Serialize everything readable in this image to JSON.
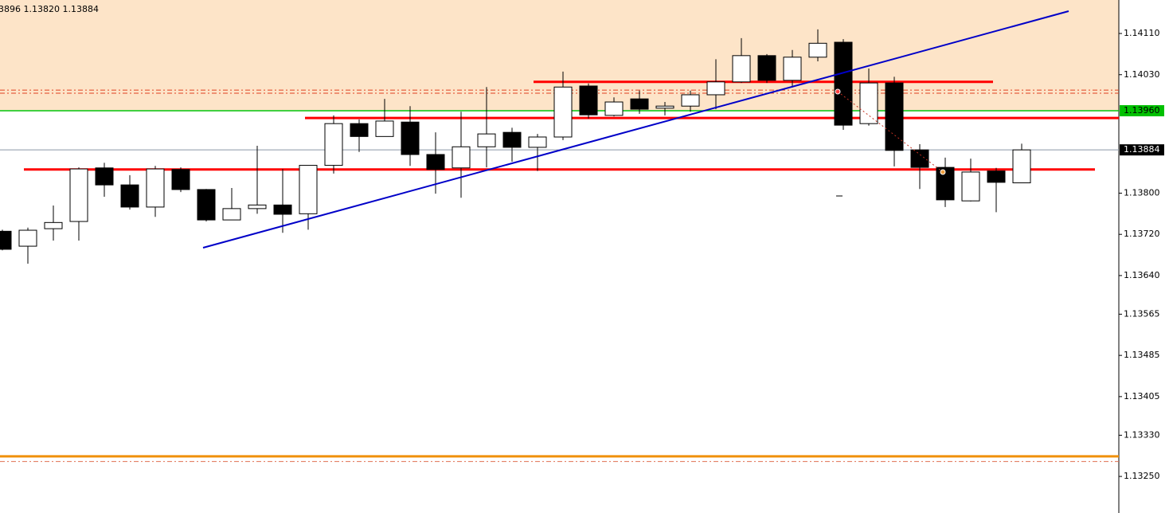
{
  "chart_data": {
    "type": "candlestick",
    "header": "3896 1.13820 1.13884",
    "open": [
      1.13726,
      1.13697,
      1.13731,
      1.13745,
      1.13849,
      1.13816,
      1.13773,
      1.13846,
      1.13807,
      1.13748,
      1.1377,
      1.13777,
      1.1376,
      1.13854,
      1.13935,
      1.1391,
      1.13938,
      1.13875,
      1.13849,
      1.1389,
      1.13918,
      1.13889,
      1.13909,
      1.14008,
      1.13951,
      1.13983,
      1.13965,
      1.13969,
      1.13991,
      1.14016,
      1.14067,
      1.14019,
      1.14064,
      1.14093,
      1.13935,
      1.14014,
      1.13884,
      1.1385,
      1.13785,
      1.13843,
      1.1382
    ],
    "high": [
      1.13729,
      1.13733,
      1.13776,
      1.1385,
      1.13859,
      1.13835,
      1.13853,
      1.1385,
      1.13808,
      1.1381,
      1.13892,
      1.13847,
      1.13854,
      1.13951,
      1.13943,
      1.13983,
      1.13969,
      1.13918,
      1.13958,
      1.14006,
      1.13927,
      1.13915,
      1.14036,
      1.14013,
      1.13986,
      1.13999,
      1.13977,
      1.13999,
      1.1406,
      1.14101,
      1.1407,
      1.14078,
      1.14118,
      1.14099,
      1.14042,
      1.14026,
      1.13895,
      1.13869,
      1.13867,
      1.13849,
      1.13896
    ],
    "low": [
      1.13689,
      1.13663,
      1.13708,
      1.13708,
      1.13793,
      1.13768,
      1.13754,
      1.13802,
      1.13745,
      1.13748,
      1.1376,
      1.13723,
      1.13729,
      1.13838,
      1.1388,
      1.1391,
      1.13853,
      1.13799,
      1.13791,
      1.1385,
      1.13861,
      1.13843,
      1.13903,
      1.13945,
      1.13949,
      1.13954,
      1.13951,
      1.13958,
      1.13963,
      1.14014,
      1.14014,
      1.14005,
      1.14056,
      1.13923,
      1.13931,
      1.13852,
      1.13808,
      1.13773,
      1.13784,
      1.13763,
      1.1382
    ],
    "close": [
      1.13691,
      1.13728,
      1.13743,
      1.13847,
      1.13816,
      1.13773,
      1.13847,
      1.13807,
      1.13748,
      1.1377,
      1.13777,
      1.13759,
      1.13854,
      1.13935,
      1.1391,
      1.1394,
      1.13875,
      1.13846,
      1.1389,
      1.13915,
      1.13889,
      1.13909,
      1.14006,
      1.13952,
      1.13977,
      1.13963,
      1.13969,
      1.13991,
      1.14016,
      1.14067,
      1.14019,
      1.14064,
      1.14091,
      1.13932,
      1.14014,
      1.13883,
      1.1385,
      1.13787,
      1.13841,
      1.13821,
      1.13884
    ],
    "up_color": "#ffffff",
    "down_color": "#000000",
    "ylim": [
      1.13179,
      1.14175
    ],
    "yticks": [
      {
        "value": 1.1411,
        "label": "1.14110"
      },
      {
        "value": 1.1403,
        "label": "1.14030"
      },
      {
        "value": 1.138,
        "label": "1.13800"
      },
      {
        "value": 1.1372,
        "label": "1.13720"
      },
      {
        "value": 1.1364,
        "label": "1.13640"
      },
      1.13565,
      1.13485,
      1.13405,
      {
        "value": 1.1333,
        "label": "1.13330"
      },
      {
        "value": 1.1325,
        "label": "1.13250"
      }
    ],
    "levels": [
      {
        "value": 1.14016,
        "color": "#ff0000",
        "style": "solid"
      },
      {
        "value": 1.13946,
        "color": "#ff0000",
        "style": "solid"
      },
      {
        "value": 1.13846,
        "color": "#ff0000",
        "style": "solid"
      },
      {
        "value": 1.1396,
        "label": "1.13960",
        "color": "#00c000",
        "style": "solid"
      },
      {
        "value": 1.14,
        "color": "#e04020",
        "style": "dash-dot"
      },
      {
        "value": 1.13994,
        "color": "#e04020",
        "style": "dash-dot"
      },
      {
        "value": 1.13289,
        "color": "#f0900a",
        "style": "solid"
      },
      {
        "value": 1.13279,
        "color": "#e07050",
        "style": "dash-dot"
      }
    ],
    "current_price": 1.13884
  }
}
